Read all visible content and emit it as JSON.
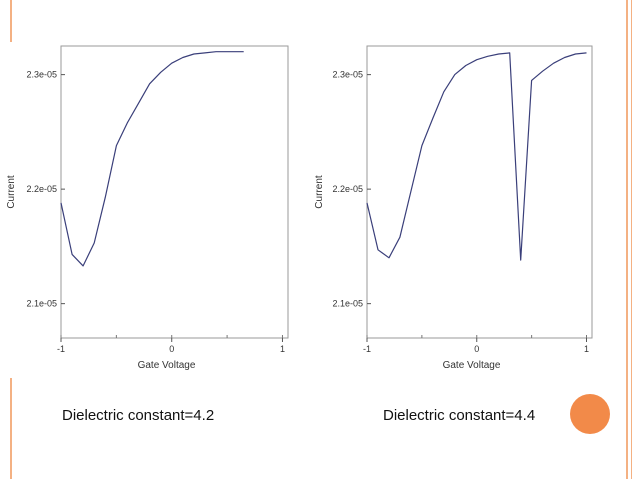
{
  "slide": {
    "accent_color": "#f4b183",
    "dot_color": "#f28a49",
    "dot_icon": "orange-circle"
  },
  "captions": {
    "left": "Dielectric constant=4.2",
    "right": "Dielectric constant=4.4"
  },
  "chart_data": [
    {
      "type": "line",
      "title": "",
      "xlabel": "Gate Voltage",
      "ylabel": "Current",
      "xlim": [
        -1,
        1.05
      ],
      "ylim": [
        2.07e-05,
        2.325e-05
      ],
      "x_ticks": [
        -1,
        0,
        1
      ],
      "x_tick_labels": [
        "-1",
        "0",
        "1"
      ],
      "y_ticks": [
        2.1e-05,
        2.2e-05,
        2.3e-05
      ],
      "y_tick_labels": [
        "2.1e-05",
        "2.2e-05",
        "2.3e-05"
      ],
      "grid": false,
      "line_color": "#3a3f7a",
      "x": [
        -1.0,
        -0.9,
        -0.8,
        -0.7,
        -0.6,
        -0.5,
        -0.4,
        -0.3,
        -0.2,
        -0.1,
        0.0,
        0.1,
        0.2,
        0.3,
        0.4,
        0.5,
        0.6,
        0.65
      ],
      "y": [
        2.188e-05,
        2.143e-05,
        2.133e-05,
        2.153e-05,
        2.193e-05,
        2.238e-05,
        2.258e-05,
        2.275e-05,
        2.292e-05,
        2.302e-05,
        2.31e-05,
        2.315e-05,
        2.318e-05,
        2.319e-05,
        2.32e-05,
        2.32e-05,
        2.32e-05,
        2.32e-05
      ]
    },
    {
      "type": "line",
      "title": "",
      "xlabel": "Gate Voltage",
      "ylabel": "Current",
      "xlim": [
        -1,
        1.05
      ],
      "ylim": [
        2.07e-05,
        2.325e-05
      ],
      "x_ticks": [
        -1,
        0,
        1
      ],
      "x_tick_labels": [
        "-1",
        "0",
        "1"
      ],
      "y_ticks": [
        2.1e-05,
        2.2e-05,
        2.3e-05
      ],
      "y_tick_labels": [
        "2.1e-05",
        "2.2e-05",
        "2.3e-05"
      ],
      "grid": false,
      "line_color": "#3a3f7a",
      "x": [
        -1.0,
        -0.9,
        -0.8,
        -0.7,
        -0.6,
        -0.5,
        -0.4,
        -0.3,
        -0.2,
        -0.1,
        0.0,
        0.1,
        0.2,
        0.3,
        0.4,
        0.5,
        0.6,
        0.7,
        0.8,
        0.9,
        1.0
      ],
      "y": [
        2.188e-05,
        2.147e-05,
        2.14e-05,
        2.158e-05,
        2.198e-05,
        2.238e-05,
        2.262e-05,
        2.285e-05,
        2.3e-05,
        2.308e-05,
        2.313e-05,
        2.316e-05,
        2.318e-05,
        2.319e-05,
        2.138e-05,
        2.295e-05,
        2.303e-05,
        2.31e-05,
        2.315e-05,
        2.318e-05,
        2.319e-05
      ]
    }
  ]
}
